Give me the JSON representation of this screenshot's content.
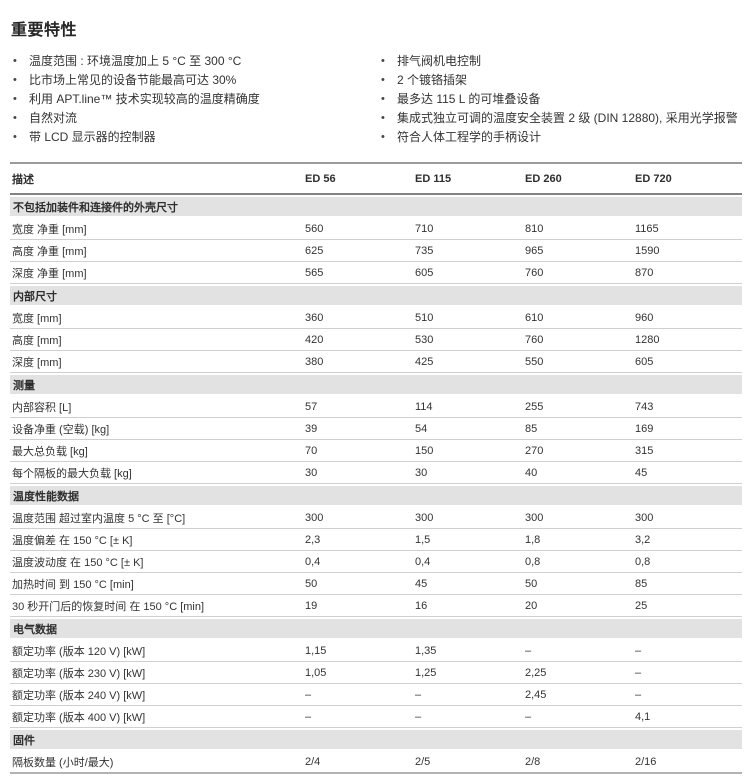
{
  "page": {
    "title": "重要特性",
    "bullet_char": "•",
    "features_left": [
      "温度范围 : 环境温度加上 5 °C 至 300 °C",
      "比市场上常见的设备节能最高可达 30%",
      "利用 APT.line™ 技术实现较高的温度精确度",
      "自然对流",
      "带 LCD 显示器的控制器"
    ],
    "features_right": [
      "排气阀机电控制",
      "2 个镀铬插架",
      "最多达 115 L 的可堆叠设备",
      "集成式独立可调的温度安全装置 2 级 (DIN 12880), 采用光学报警",
      "符合人体工程学的手柄设计"
    ]
  },
  "table": {
    "header_label": "描述",
    "columns": [
      "ED 56",
      "ED 115",
      "ED 260",
      "ED 720"
    ],
    "rows": [
      {
        "type": "section",
        "label": "不包括加装件和连接件的外壳尺寸"
      },
      {
        "type": "data",
        "label": "宽度 净重 [mm]",
        "values": [
          "560",
          "710",
          "810",
          "1165"
        ]
      },
      {
        "type": "data",
        "label": "高度 净重 [mm]",
        "values": [
          "625",
          "735",
          "965",
          "1590"
        ]
      },
      {
        "type": "data",
        "label": "深度 净重 [mm]",
        "values": [
          "565",
          "605",
          "760",
          "870"
        ]
      },
      {
        "type": "section",
        "label": "内部尺寸"
      },
      {
        "type": "data",
        "label": "宽度 [mm]",
        "values": [
          "360",
          "510",
          "610",
          "960"
        ]
      },
      {
        "type": "data",
        "label": "高度 [mm]",
        "values": [
          "420",
          "530",
          "760",
          "1280"
        ]
      },
      {
        "type": "data",
        "label": "深度 [mm]",
        "values": [
          "380",
          "425",
          "550",
          "605"
        ]
      },
      {
        "type": "section",
        "label": "测量"
      },
      {
        "type": "data",
        "label": "内部容积 [L]",
        "values": [
          "57",
          "114",
          "255",
          "743"
        ]
      },
      {
        "type": "data",
        "label": "设备净重 (空载)  [kg]",
        "values": [
          "39",
          "54",
          "85",
          "169"
        ]
      },
      {
        "type": "data",
        "label": "最大总负载 [kg]",
        "values": [
          "70",
          "150",
          "270",
          "315"
        ]
      },
      {
        "type": "data",
        "label": "每个隔板的最大负载 [kg]",
        "values": [
          "30",
          "30",
          "40",
          "45"
        ]
      },
      {
        "type": "section",
        "label": "温度性能数据"
      },
      {
        "type": "data",
        "label": "温度范围 超过室内温度 5 °C 至 [°C]",
        "values": [
          "300",
          "300",
          "300",
          "300"
        ]
      },
      {
        "type": "data",
        "label": "温度偏差 在 150 °C [± K]",
        "values": [
          "2,3",
          "1,5",
          "1,8",
          "3,2"
        ]
      },
      {
        "type": "data",
        "label": "温度波动度 在 150 °C [± K]",
        "values": [
          "0,4",
          "0,4",
          "0,8",
          "0,8"
        ]
      },
      {
        "type": "data",
        "label": "加热时间 到 150 °C [min]",
        "values": [
          "50",
          "45",
          "50",
          "85"
        ]
      },
      {
        "type": "data",
        "label": "30 秒开门后的恢复时间 在 150 °C [min]",
        "values": [
          "19",
          "16",
          "20",
          "25"
        ]
      },
      {
        "type": "section",
        "label": "电气数据"
      },
      {
        "type": "data",
        "label": "额定功率 (版本 120 V) [kW]",
        "values": [
          "1,15",
          "1,35",
          "–",
          "–"
        ]
      },
      {
        "type": "data",
        "label": "额定功率 (版本 230 V) [kW]",
        "values": [
          "1,05",
          "1,25",
          "2,25",
          "–"
        ]
      },
      {
        "type": "data",
        "label": "额定功率 (版本 240 V) [kW]",
        "values": [
          "–",
          "–",
          "2,45",
          "–"
        ]
      },
      {
        "type": "data",
        "label": "额定功率 (版本 400 V) [kW]",
        "values": [
          "–",
          "–",
          "–",
          "4,1"
        ]
      },
      {
        "type": "section",
        "label": "固件"
      },
      {
        "type": "data",
        "label": "隔板数量 (小时/最大)",
        "values": [
          "2/4",
          "2/5",
          "2/8",
          "2/16"
        ]
      }
    ]
  }
}
